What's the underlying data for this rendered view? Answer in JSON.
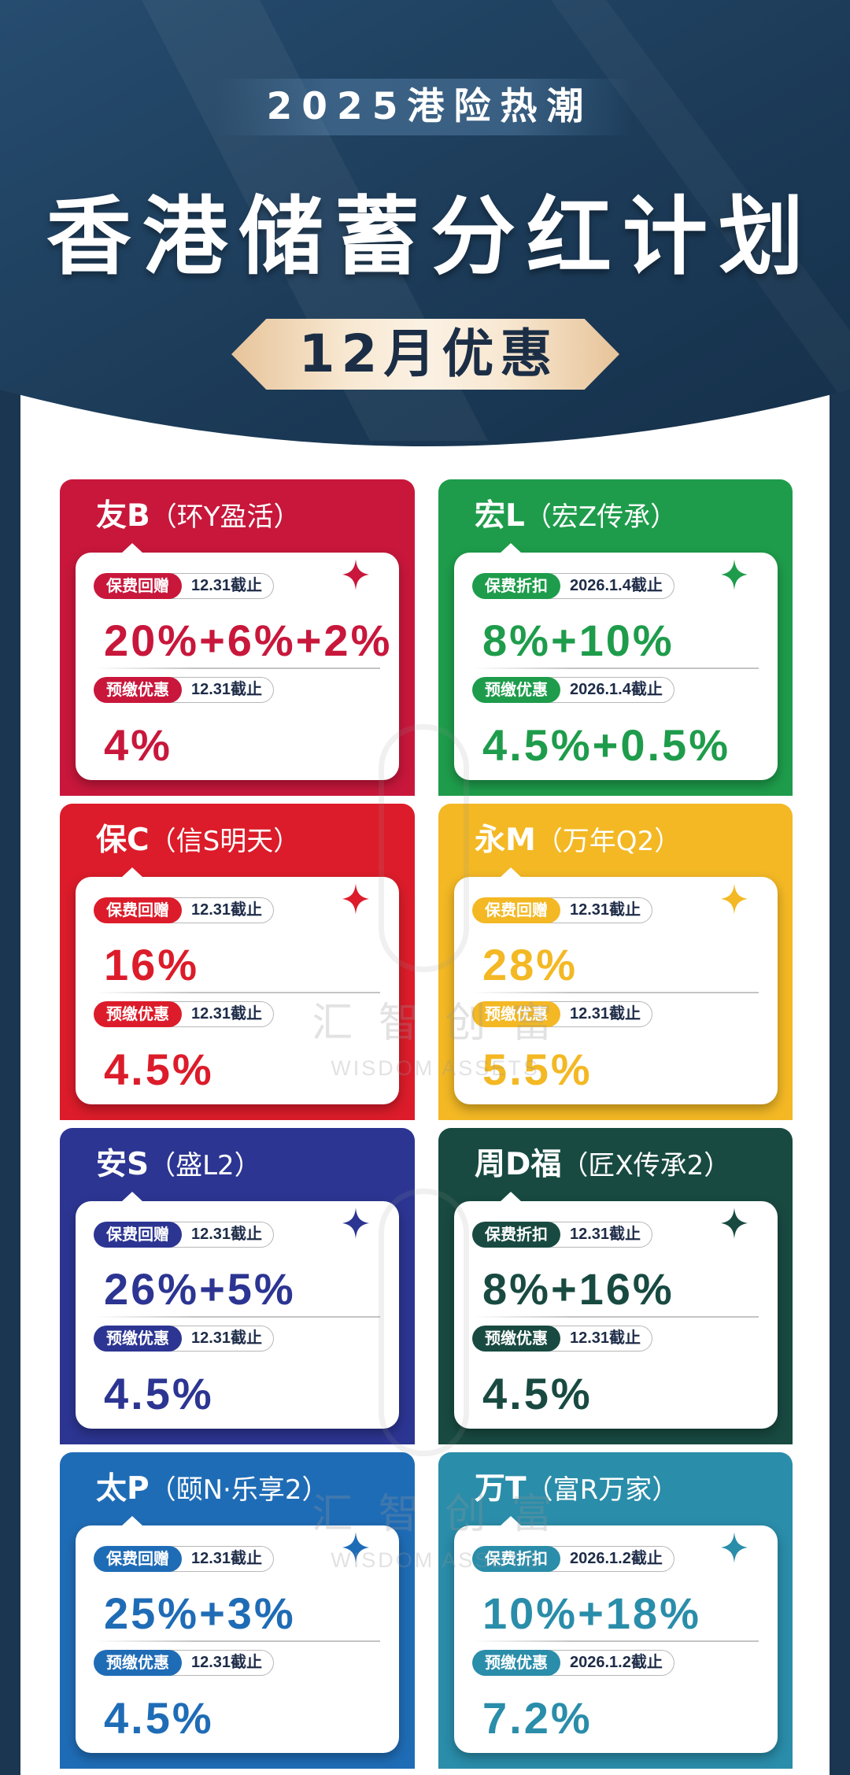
{
  "header": {
    "eyebrow": "2025港险热潮",
    "title": "香港储蓄分红计划",
    "ribbon": "12月优惠"
  },
  "colors": {
    "header_bg": "#1c3b58",
    "frame": "#1a3650",
    "ribbon_bg": "#f4dfc2",
    "ribbon_text": "#1b2e45",
    "deadline_text": "#1e2c48"
  },
  "icons": {
    "card_decoration": "sparkle-icon"
  },
  "cards": [
    {
      "brand": "友B",
      "plan": "（环Y盈活）",
      "color": "#c8173b",
      "offers": [
        {
          "label": "保费回赠",
          "deadline": "12.31截止",
          "value": "20%+6%+2%"
        },
        {
          "label": "预缴优惠",
          "deadline": "12.31截止",
          "value": "4%"
        }
      ]
    },
    {
      "brand": "宏L",
      "plan": "（宏Z传承）",
      "color": "#1e9c4b",
      "offers": [
        {
          "label": "保费折扣",
          "deadline": "2026.1.4截止",
          "value": "8%+10%"
        },
        {
          "label": "预缴优惠",
          "deadline": "2026.1.4截止",
          "value": "4.5%+0.5%"
        }
      ]
    },
    {
      "brand": "保C",
      "plan": "（信S明天）",
      "color": "#dc1c2a",
      "offers": [
        {
          "label": "保费回赠",
          "deadline": "12.31截止",
          "value": "16%"
        },
        {
          "label": "预缴优惠",
          "deadline": "12.31截止",
          "value": "4.5%"
        }
      ]
    },
    {
      "brand": "永M",
      "plan": "（万年Q2）",
      "color": "#f3b824",
      "offers": [
        {
          "label": "保费回赠",
          "deadline": "12.31截止",
          "value": "28%"
        },
        {
          "label": "预缴优惠",
          "deadline": "12.31截止",
          "value": "5.5%"
        }
      ]
    },
    {
      "brand": "安S",
      "plan": "（盛L2）",
      "color": "#2c3592",
      "offers": [
        {
          "label": "保费回赠",
          "deadline": "12.31截止",
          "value": "26%+5%"
        },
        {
          "label": "预缴优惠",
          "deadline": "12.31截止",
          "value": "4.5%"
        }
      ]
    },
    {
      "brand": "周D福",
      "plan": "（匠X传承2）",
      "color": "#184a41",
      "offers": [
        {
          "label": "保费折扣",
          "deadline": "12.31截止",
          "value": "8%+16%"
        },
        {
          "label": "预缴优惠",
          "deadline": "12.31截止",
          "value": "4.5%"
        }
      ]
    },
    {
      "brand": "太P",
      "plan": "（颐N·乐享2）",
      "color": "#1f6cb6",
      "offers": [
        {
          "label": "保费回赠",
          "deadline": "12.31截止",
          "value": "25%+3%"
        },
        {
          "label": "预缴优惠",
          "deadline": "12.31截止",
          "value": "4.5%"
        }
      ]
    },
    {
      "brand": "万T",
      "plan": "（富R万家）",
      "color": "#2a8daa",
      "offers": [
        {
          "label": "保费折扣",
          "deadline": "2026.1.2截止",
          "value": "10%+18%"
        },
        {
          "label": "预缴优惠",
          "deadline": "2026.1.2截止",
          "value": "7.2%"
        }
      ]
    }
  ],
  "watermark": {
    "cn": "汇 智 创 富",
    "en": "WISDOM ASSETS"
  }
}
